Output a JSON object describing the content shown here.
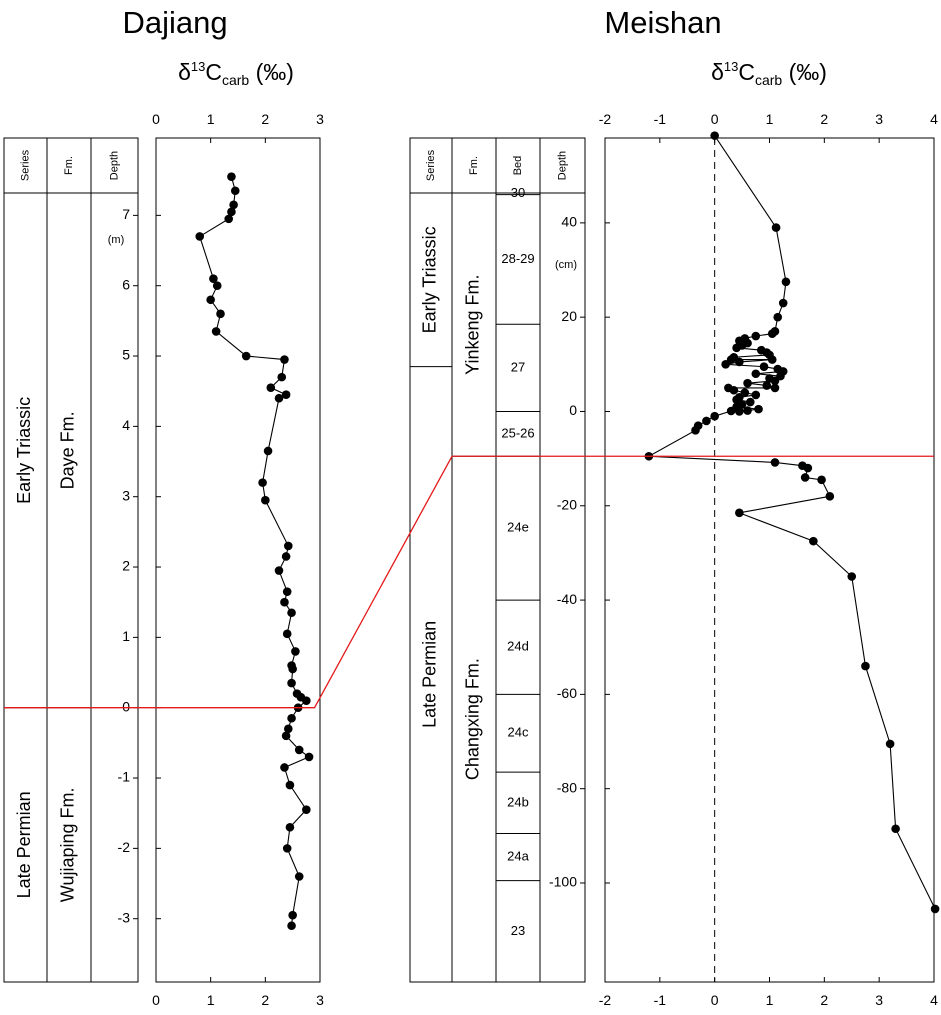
{
  "chart_data": [
    {
      "type": "line",
      "title": "Dajiang",
      "xlabel": "δ13Ccarb (‰)",
      "xlabel_parts": {
        "delta": "δ",
        "sup": "13",
        "c": "C",
        "sub": "carb",
        "unit": " (‰)"
      },
      "ylabel": "Depth",
      "depth_unit": "(m)",
      "xlim": [
        0,
        3
      ],
      "ylim": [
        -3.9,
        8.1
      ],
      "xticks": [
        0,
        1,
        2,
        3
      ],
      "yticks": [
        -3,
        -2,
        -1,
        0,
        1,
        2,
        3,
        4,
        5,
        6,
        7
      ],
      "columns": [
        "Series",
        "Fm.",
        "Depth"
      ],
      "series_units": [
        {
          "label": "Early Triassic",
          "top": 8.1,
          "bottom": 0
        },
        {
          "label": "Late Permian",
          "top": 0,
          "bottom": -3.9
        }
      ],
      "formations": [
        {
          "label": "Daye Fm.",
          "top": 8.1,
          "bottom": 0
        },
        {
          "label": "Wujiaping Fm.",
          "top": 0,
          "bottom": -3.9
        }
      ],
      "points": [
        [
          1.38,
          7.55
        ],
        [
          1.45,
          7.35
        ],
        [
          1.42,
          7.15
        ],
        [
          1.38,
          7.05
        ],
        [
          1.33,
          6.95
        ],
        [
          0.8,
          6.7
        ],
        [
          1.05,
          6.1
        ],
        [
          1.12,
          6.0
        ],
        [
          1.0,
          5.8
        ],
        [
          1.18,
          5.6
        ],
        [
          1.1,
          5.35
        ],
        [
          1.65,
          5.0
        ],
        [
          2.35,
          4.95
        ],
        [
          2.3,
          4.7
        ],
        [
          2.1,
          4.55
        ],
        [
          2.38,
          4.45
        ],
        [
          2.25,
          4.4
        ],
        [
          2.05,
          3.65
        ],
        [
          1.95,
          3.2
        ],
        [
          2.0,
          2.95
        ],
        [
          2.42,
          2.3
        ],
        [
          2.38,
          2.15
        ],
        [
          2.25,
          1.95
        ],
        [
          2.4,
          1.65
        ],
        [
          2.35,
          1.5
        ],
        [
          2.48,
          1.35
        ],
        [
          2.4,
          1.05
        ],
        [
          2.55,
          0.8
        ],
        [
          2.48,
          0.6
        ],
        [
          2.5,
          0.55
        ],
        [
          2.48,
          0.35
        ],
        [
          2.58,
          0.2
        ],
        [
          2.65,
          0.15
        ],
        [
          2.75,
          0.1
        ],
        [
          2.6,
          0.0
        ],
        [
          2.48,
          -0.15
        ],
        [
          2.42,
          -0.3
        ],
        [
          2.38,
          -0.4
        ],
        [
          2.62,
          -0.6
        ],
        [
          2.8,
          -0.7
        ],
        [
          2.35,
          -0.85
        ],
        [
          2.45,
          -1.1
        ],
        [
          2.75,
          -1.45
        ],
        [
          2.45,
          -1.7
        ],
        [
          2.4,
          -2.0
        ],
        [
          2.62,
          -2.4
        ],
        [
          2.5,
          -2.95
        ],
        [
          2.48,
          -3.1
        ]
      ],
      "boundary_depth": 0
    },
    {
      "type": "line",
      "title": "Meishan",
      "xlabel": "δ13Ccarb (‰)",
      "xlabel_parts": {
        "delta": "δ",
        "sup": "13",
        "c": "C",
        "sub": "carb",
        "unit": " (‰)"
      },
      "ylabel": "Depth",
      "depth_unit": "(cm)",
      "xlim": [
        -2,
        4
      ],
      "ylim": [
        -121,
        58
      ],
      "xticks": [
        -2,
        -1,
        0,
        1,
        2,
        3,
        4
      ],
      "yticks": [
        -100,
        -80,
        -60,
        -40,
        -20,
        0,
        20,
        40
      ],
      "columns": [
        "Series",
        "Fm.",
        "Bed",
        "Depth"
      ],
      "series_units": [
        {
          "label": "Early Triassic",
          "top": 58,
          "bottom": 9.5
        },
        {
          "label": "Late Permian",
          "top": 9.5,
          "bottom": -121
        }
      ],
      "formations": [
        {
          "label": "Yinkeng Fm.",
          "top": 58,
          "bottom": -9.5
        },
        {
          "label": "Changxing Fm.",
          "top": -9.5,
          "bottom": -121
        }
      ],
      "beds": [
        {
          "label": "30",
          "top": 58,
          "bottom": 46
        },
        {
          "label": "28-29",
          "top": 46,
          "bottom": 18.5
        },
        {
          "label": "27",
          "top": 18.5,
          "bottom": 0
        },
        {
          "label": "25-26",
          "top": 0,
          "bottom": -9.5
        },
        {
          "label": "24e",
          "top": -9.5,
          "bottom": -40
        },
        {
          "label": "24d",
          "top": -40,
          "bottom": -60
        },
        {
          "label": "24c",
          "top": -60,
          "bottom": -76.5
        },
        {
          "label": "24b",
          "top": -76.5,
          "bottom": -89.5
        },
        {
          "label": "24a",
          "top": -89.5,
          "bottom": -99.5
        },
        {
          "label": "23",
          "top": -99.5,
          "bottom": -121
        }
      ],
      "points": [
        [
          0.0,
          58.5
        ],
        [
          1.12,
          39
        ],
        [
          1.3,
          27.5
        ],
        [
          1.25,
          23
        ],
        [
          1.15,
          20
        ],
        [
          1.1,
          17
        ],
        [
          1.05,
          16.5
        ],
        [
          0.75,
          16
        ],
        [
          0.55,
          15.5
        ],
        [
          0.45,
          15
        ],
        [
          0.6,
          14.5
        ],
        [
          0.5,
          14
        ],
        [
          0.4,
          13.5
        ],
        [
          0.85,
          13
        ],
        [
          0.95,
          12.5
        ],
        [
          1.0,
          12
        ],
        [
          0.35,
          11.5
        ],
        [
          0.3,
          11
        ],
        [
          1.05,
          11
        ],
        [
          0.45,
          10.5
        ],
        [
          0.2,
          10
        ],
        [
          0.9,
          9.5
        ],
        [
          1.15,
          9
        ],
        [
          1.25,
          8.5
        ],
        [
          0.75,
          8
        ],
        [
          1.2,
          7.5
        ],
        [
          1.0,
          7
        ],
        [
          1.1,
          6.5
        ],
        [
          0.6,
          6
        ],
        [
          0.95,
          5.5
        ],
        [
          1.1,
          5
        ],
        [
          0.25,
          5
        ],
        [
          0.35,
          4.5
        ],
        [
          0.55,
          4
        ],
        [
          0.75,
          3.5
        ],
        [
          0.45,
          3
        ],
        [
          0.4,
          2.5
        ],
        [
          0.65,
          2
        ],
        [
          0.5,
          1.5
        ],
        [
          0.4,
          1
        ],
        [
          0.8,
          0.5
        ],
        [
          0.6,
          0.2
        ],
        [
          0.45,
          0.0
        ],
        [
          0.3,
          0.1
        ],
        [
          0.0,
          -1
        ],
        [
          -0.15,
          -2
        ],
        [
          -0.3,
          -3
        ],
        [
          -0.35,
          -4
        ],
        [
          -1.2,
          -9.5
        ],
        [
          1.1,
          -10.8
        ],
        [
          1.6,
          -11.5
        ],
        [
          1.7,
          -12
        ],
        [
          1.65,
          -14
        ],
        [
          1.95,
          -14.5
        ],
        [
          2.1,
          -18
        ],
        [
          0.45,
          -21.5
        ],
        [
          1.8,
          -27.5
        ],
        [
          2.5,
          -35
        ],
        [
          2.75,
          -54
        ],
        [
          3.2,
          -70.5
        ],
        [
          3.3,
          -88.5
        ],
        [
          4.02,
          -105.5
        ]
      ],
      "boundary_depth": -9.5
    }
  ]
}
